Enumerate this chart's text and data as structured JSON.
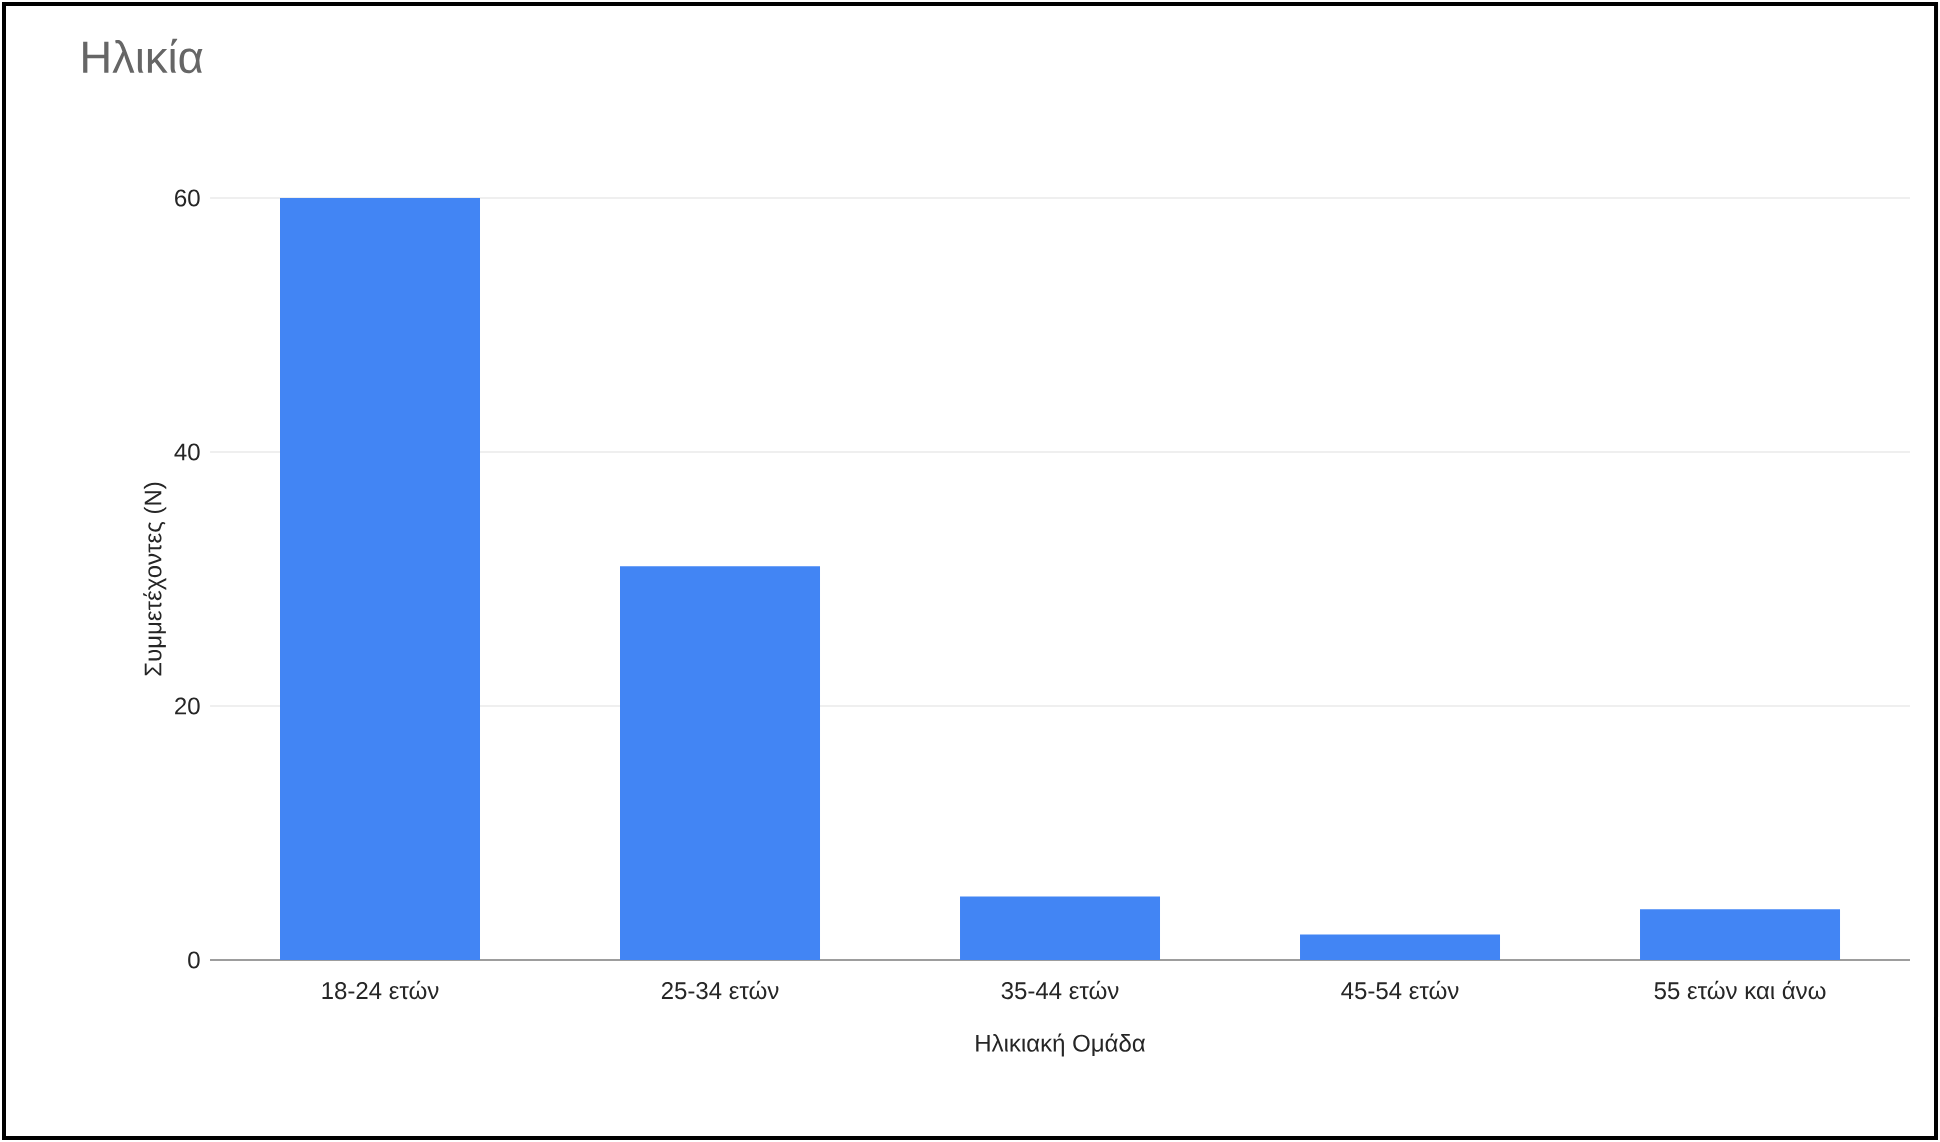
{
  "chart_data": {
    "type": "bar",
    "title": "Ηλικία",
    "xlabel": "Ηλικιακή Ομάδα",
    "ylabel": "Συμμετέχοντες (N)",
    "categories": [
      "18-24 ετών",
      "25-34 ετών",
      "35-44 ετών",
      "45-54 ετών",
      "55 ετών και άνω"
    ],
    "values": [
      60,
      31,
      5,
      2,
      4
    ],
    "color": "#4285f4",
    "ylim": [
      0,
      60
    ],
    "yticks": [
      0,
      20,
      40,
      60
    ],
    "grid": "y"
  }
}
